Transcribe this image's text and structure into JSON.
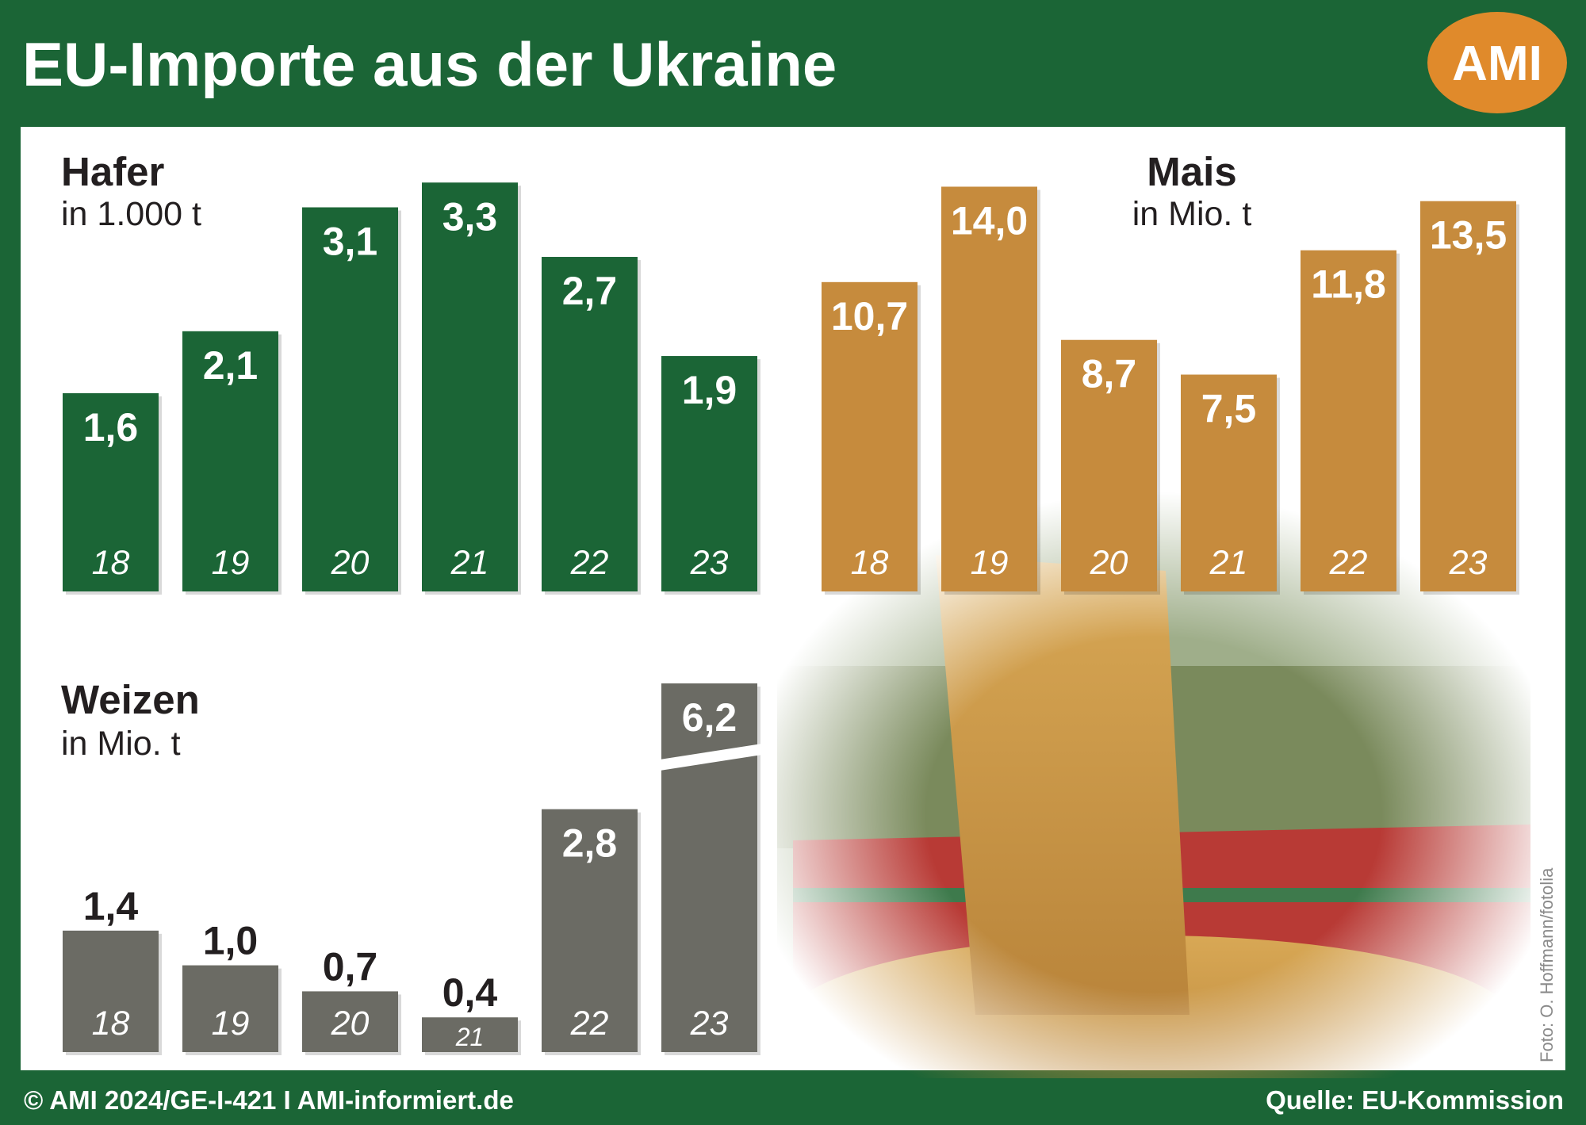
{
  "header": {
    "title": "EU-Importe aus der Ukraine",
    "logo": "AMI"
  },
  "chart_data": [
    {
      "type": "bar",
      "title": "Hafer",
      "subtitle": "in 1.000 t",
      "categories": [
        "18",
        "19",
        "20",
        "21",
        "22",
        "23"
      ],
      "values": [
        1.6,
        2.1,
        3.1,
        3.3,
        2.7,
        1.9
      ],
      "value_labels": [
        "1,6",
        "2,1",
        "3,1",
        "3,3",
        "2,7",
        "1,9"
      ],
      "color": "#1b6536",
      "ylim": [
        0,
        3.5
      ]
    },
    {
      "type": "bar",
      "title": "Mais",
      "subtitle": "in Mio. t",
      "categories": [
        "18",
        "19",
        "20",
        "21",
        "22",
        "23"
      ],
      "values": [
        10.7,
        14.0,
        8.7,
        7.5,
        11.8,
        13.5
      ],
      "value_labels": [
        "10,7",
        "14,0",
        "8,7",
        "7,5",
        "11,8",
        "13,5"
      ],
      "color": "#c68b3d",
      "ylim": [
        0,
        15
      ]
    },
    {
      "type": "bar",
      "title": "Weizen",
      "subtitle": "in Mio. t",
      "categories": [
        "18",
        "19",
        "20",
        "21",
        "22",
        "23"
      ],
      "values": [
        1.4,
        1.0,
        0.7,
        0.4,
        2.8,
        6.2
      ],
      "value_labels": [
        "1,4",
        "1,0",
        "0,7",
        "0,4",
        "2,8",
        "6,2"
      ],
      "color": "#6b6b64",
      "ylim": [
        0,
        4.25
      ]
    }
  ],
  "photo_credit": "Foto: O. Hoffmann/fotolia",
  "footer": {
    "left": "© AMI 2024/GE-I-421 I AMI-informiert.de",
    "right": "Quelle: EU-Kommission"
  }
}
